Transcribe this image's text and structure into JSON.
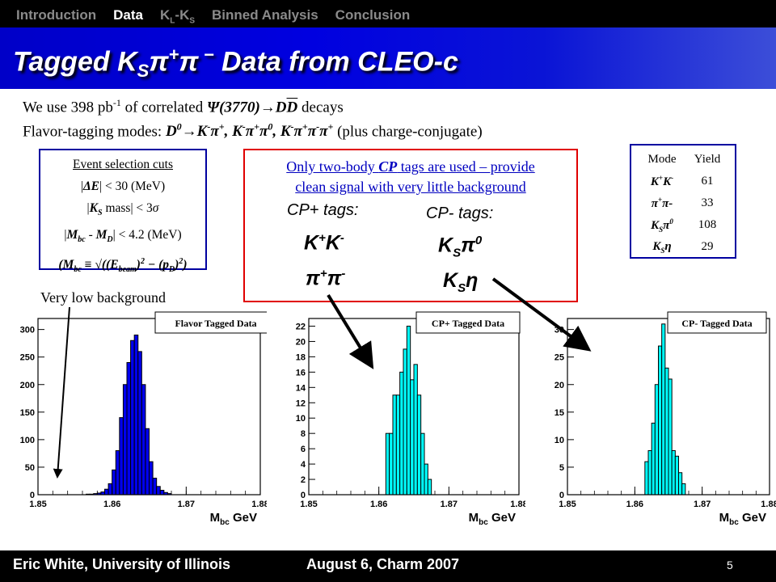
{
  "nav": {
    "items": [
      "Introduction",
      "Data",
      "KL-KS",
      "Binned Analysis",
      "Conclusion"
    ],
    "active": "Data"
  },
  "title": "Tagged KSπ+π − Data from CLEO-c",
  "intro": {
    "line1": "We use 398 pb-1 of correlated Ψ(3770)→DD decays",
    "line2": "Flavor-tagging modes: D0→K-π+, K-π+π0, K-π+π-π+ (plus charge-conjugate)"
  },
  "cuts": {
    "heading": "Event selection cuts",
    "items": [
      "|ΔE| < 30 (MeV)",
      "|KS mass| < 3σ",
      "|Mbc - MD| < 4.2 (MeV)",
      "(Mbc ≡ √((Ebeam)2 − (pD)2)"
    ]
  },
  "cp_box": {
    "header_line1": "Only two-body CP tags are used – provide",
    "header_line2": "clean signal with very little background",
    "cp_plus_label": "CP+ tags:",
    "cp_minus_label": "CP- tags:",
    "cp_plus_modes": [
      "K+K-",
      "π+π-"
    ],
    "cp_minus_modes": [
      "KSπ0",
      "KSη"
    ]
  },
  "yields": {
    "header": [
      "Mode",
      "Yield"
    ],
    "rows": [
      {
        "mode": "K+K-",
        "yield": "61"
      },
      {
        "mode": "π+π-",
        "yield": "33"
      },
      {
        "mode": "KSπ0",
        "yield": "108"
      },
      {
        "mode": "KSη",
        "yield": "29"
      }
    ]
  },
  "annotation": "Very low background",
  "colors": {
    "flavor": "#0000ee",
    "cp": "#00ffff",
    "title_bar": "#0000d0",
    "red_box": "#e00000"
  },
  "chart_data": [
    {
      "type": "bar",
      "legend": "Flavor Tagged Data",
      "xlabel": "Mbc GeV",
      "xlim": [
        1.85,
        1.88
      ],
      "ylim": [
        0,
        320
      ],
      "xticks": [
        "1.85",
        "1.86",
        "1.87",
        "1.88"
      ],
      "yticks": [
        "0",
        "50",
        "100",
        "150",
        "200",
        "250",
        "300"
      ],
      "bin_edges_start": 1.8565,
      "bin_width": 0.0005,
      "values": [
        1,
        1,
        2,
        3,
        5,
        10,
        20,
        45,
        80,
        140,
        200,
        240,
        280,
        290,
        260,
        200,
        120,
        60,
        30,
        15,
        8,
        4,
        2
      ]
    },
    {
      "type": "bar",
      "legend": "CP+ Tagged Data",
      "xlabel": "Mbc GeV",
      "xlim": [
        1.85,
        1.88
      ],
      "ylim": [
        0,
        23
      ],
      "xticks": [
        "1.85",
        "1.86",
        "1.87",
        "1.88"
      ],
      "yticks": [
        "0",
        "2",
        "4",
        "6",
        "8",
        "10",
        "12",
        "14",
        "16",
        "18",
        "20",
        "22"
      ],
      "bin_edges_start": 1.861,
      "bin_width": 0.0005,
      "values": [
        8,
        8,
        13,
        13,
        16,
        19,
        22,
        15,
        17,
        13,
        8,
        4,
        2
      ]
    },
    {
      "type": "bar",
      "legend": "CP- Tagged Data",
      "xlabel": "Mbc GeV",
      "xlim": [
        1.85,
        1.88
      ],
      "ylim": [
        0,
        32
      ],
      "xticks": [
        "1.85",
        "1.86",
        "1.87",
        "1.88"
      ],
      "yticks": [
        "0",
        "5",
        "10",
        "15",
        "20",
        "25",
        "30"
      ],
      "bin_edges_start": 1.8615,
      "bin_width": 0.0005,
      "values": [
        6,
        8,
        13,
        20,
        27,
        31,
        23,
        21,
        8,
        7,
        4,
        2
      ]
    }
  ],
  "footer": {
    "author": "Eric White, University of Illinois",
    "event": "August 6, Charm 2007",
    "page": "5"
  }
}
